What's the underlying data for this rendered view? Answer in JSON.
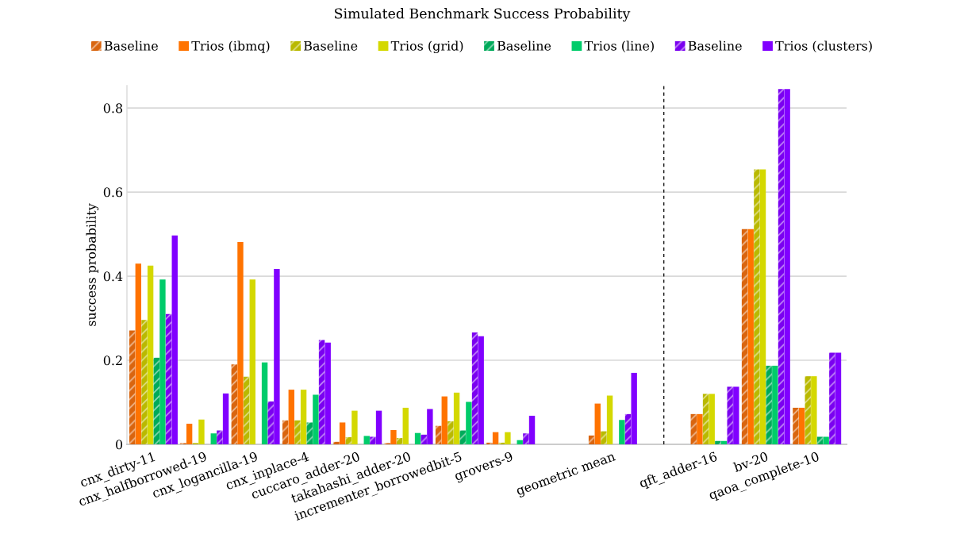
{
  "chart_data": {
    "type": "bar",
    "title": "Simulated Benchmark Success Probability",
    "ylabel": "success probability",
    "categories": [
      "cnx_dirty-11",
      "cnx_halfborrowed-19",
      "cnx_logancilla-19",
      "cnx_inplace-4",
      "cuccaro_adder-20",
      "takahashi_adder-20",
      "incrementer_borrowedbit-5",
      "grovers-9",
      null,
      "geometric mean",
      null,
      "qft_adder-16",
      "bv-20",
      "qaoa_complete-10"
    ],
    "series": [
      {
        "name": "Baseline",
        "color": "#d9650f",
        "values": [
          0.271,
          0.003,
          0.19,
          0.057,
          0.006,
          0.003,
          0.044,
          0.004,
          null,
          0.021,
          null,
          0.072,
          0.512,
          0.087
        ]
      },
      {
        "name": "Trios (ibmq)",
        "color": "#ff7300",
        "values": [
          0.43,
          0.049,
          0.481,
          0.13,
          0.052,
          0.034,
          0.114,
          0.029,
          null,
          0.097,
          null,
          0.072,
          0.512,
          0.087
        ]
      },
      {
        "name": "Baseline",
        "color": "#b9b900",
        "values": [
          0.296,
          0.003,
          0.161,
          0.057,
          0.017,
          0.015,
          0.055,
          0.004,
          null,
          0.031,
          null,
          0.12,
          0.654,
          0.162
        ]
      },
      {
        "name": "Trios (grid)",
        "color": "#d4d800",
        "values": [
          0.425,
          0.059,
          0.392,
          0.13,
          0.08,
          0.087,
          0.123,
          0.029,
          null,
          0.116,
          null,
          0.12,
          0.654,
          0.162
        ]
      },
      {
        "name": "Baseline",
        "color": "#00aa5a",
        "values": [
          0.206,
          0,
          0,
          0.052,
          0,
          0,
          0.033,
          0,
          null,
          0,
          null,
          0.008,
          0.187,
          0.018
        ]
      },
      {
        "name": "Trios (line)",
        "color": "#00cc6a",
        "values": [
          0.392,
          0.026,
          0.195,
          0.118,
          0.02,
          0.027,
          0.101,
          0.01,
          null,
          0.058,
          null,
          0.008,
          0.187,
          0.018
        ]
      },
      {
        "name": "Baseline",
        "color": "#7a00f0",
        "values": [
          0.31,
          0.033,
          0.102,
          0.248,
          0.018,
          0.023,
          0.266,
          0.026,
          null,
          0.072,
          null,
          0.137,
          0.845,
          0.218
        ]
      },
      {
        "name": "Trios (clusters)",
        "color": "#8000ff",
        "values": [
          0.497,
          0.121,
          0.417,
          0.242,
          0.08,
          0.084,
          0.257,
          0.068,
          null,
          0.17,
          null,
          0.137,
          0.845,
          0.218
        ]
      }
    ],
    "ylim": [
      0,
      0.853
    ],
    "yticks": [
      0,
      0.2,
      0.4,
      0.6,
      0.8
    ],
    "grid": "y",
    "legend": "top"
  }
}
